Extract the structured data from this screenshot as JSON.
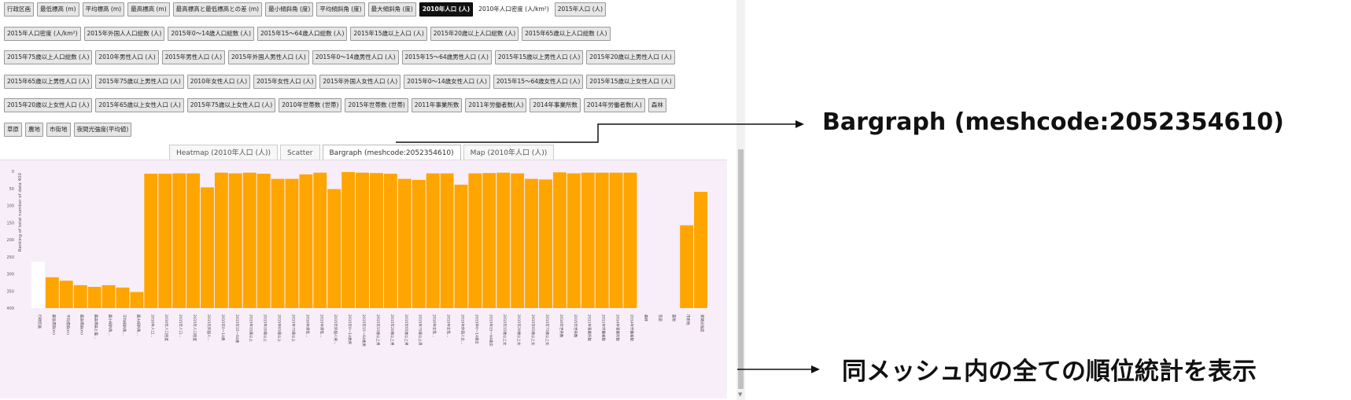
{
  "attribute_buttons": {
    "rows": [
      [
        "行政区画",
        "最低標高 (m)",
        "平均標高 (m)",
        "最高標高 (m)",
        "最高標高と最低標高との差 (m)",
        "最小傾斜角 (度)",
        "平均傾斜角 (度)",
        "最大傾斜角 (度)",
        "2010年人口 (人)",
        "2010年人口密度 (人/km²)",
        "2015年人口 (人)"
      ],
      [
        "2015年人口密度 (人/km²)",
        "2015年外国人人口総数 (人)",
        "2015年0～14歳人口総数 (人)",
        "2015年15～64歳人口総数 (人)",
        "2015年15歳以上人口 (人)",
        "2015年20歳以上人口総数 (人)",
        "2015年65歳以上人口総数 (人)"
      ],
      [
        "2015年75歳以上人口総数 (人)",
        "2010年男性人口 (人)",
        "2015年男性人口 (人)",
        "2015年外国人男性人口 (人)",
        "2015年0～14歳男性人口 (人)",
        "2015年15～64歳男性人口 (人)",
        "2015年15歳以上男性人口 (人)",
        "2015年20歳以上男性人口 (人)"
      ],
      [
        "2015年65歳以上男性人口 (人)",
        "2015年75歳以上男性人口 (人)",
        "2010年女性人口 (人)",
        "2015年女性人口 (人)",
        "2015年外国人女性人口 (人)",
        "2015年0～14歳女性人口 (人)",
        "2015年15～64歳女性人口 (人)",
        "2015年15歳以上女性人口 (人)"
      ],
      [
        "2015年20歳以上女性人口 (人)",
        "2015年65歳以上女性人口 (人)",
        "2015年75歳以上女性人口 (人)",
        "2010年世帯数 (世帯)",
        "2015年世帯数 (世帯)",
        "2011年事業所数",
        "2011年労働者数(人)",
        "2014年事業所数",
        "2014年労働者数(人)",
        "森林"
      ],
      [
        "草原",
        "農地",
        "市街地",
        "夜間光強度(平均値)"
      ]
    ],
    "active": "2010年人口 (人)",
    "plain": [
      "2010年人口密度 (人/km²)"
    ]
  },
  "tabs": [
    {
      "label": "Heatmap (2010年人口 (人))",
      "active": false
    },
    {
      "label": "Scatter",
      "active": false
    },
    {
      "label": "Bargraph (meshcode:2052354610)",
      "active": true
    },
    {
      "label": "Map (2010年人口 (人))",
      "active": false
    }
  ],
  "annotations": {
    "bargraph_label": "Bargraph (meshcode:2052354610)",
    "stats_label": "同メッシュ内の全ての順位統計を表示"
  },
  "colors": {
    "bar": "#ffa500",
    "chart_background": "#f8eefa",
    "active_button": "#111111"
  },
  "chart_data": {
    "type": "bar",
    "ylabel": "Ranking of total number of data 400",
    "ylim": [
      400,
      0
    ],
    "yticks": [
      "0",
      "50",
      "100",
      "150",
      "200",
      "250",
      "300",
      "350",
      "400"
    ],
    "categories": [
      "行政区画",
      "最低標高(m)",
      "平均標高(m)",
      "最高標高(m)",
      "最高標高と最…",
      "最小傾斜角…",
      "平均傾斜角…",
      "最大傾斜角…",
      "2010年人口…",
      "2010年人口密度",
      "2015年人口…",
      "2015年人口密度",
      "2015年外国人…",
      "2015年0～14歳",
      "2015年15～64歳",
      "2015年15歳以上",
      "2015年20歳以上",
      "2015年65歳以上",
      "2015年75歳以上",
      "2010年男性…",
      "2015年男性…",
      "2015年外国人男…",
      "2015年0～14歳男",
      "2015年15～64歳男",
      "2015年15歳以上男",
      "2015年20歳以上男",
      "2015年65歳以上男",
      "2015年75歳以上男",
      "2010年女性…",
      "2015年女性…",
      "2015年外国人女…",
      "2015年0～14歳女",
      "2015年15～64歳女",
      "2015年15歳以上女",
      "2015年20歳以上女",
      "2015年65歳以上女",
      "2015年75歳以上女",
      "2010年世帯数",
      "2015年世帯数",
      "2011年事業所数",
      "2011年労働者数",
      "2014年事業所数",
      "2014年労働者数",
      "森林",
      "草原",
      "農地",
      "市街地",
      "夜間光強度"
    ],
    "values": [
      265,
      310,
      320,
      333,
      338,
      333,
      340,
      353,
      7,
      7,
      6,
      6,
      47,
      4,
      6,
      4,
      7,
      22,
      22,
      9,
      4,
      52,
      2,
      4,
      5,
      7,
      22,
      25,
      6,
      6,
      39,
      6,
      5,
      4,
      6,
      22,
      24,
      3,
      6,
      4,
      4,
      4,
      4,
      400,
      400,
      400,
      158,
      60
    ],
    "highlight_index": 0,
    "highlight_color": "#ffffff"
  }
}
